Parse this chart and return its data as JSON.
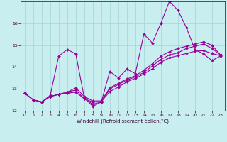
{
  "title": "",
  "xlabel": "Windchill (Refroidissement éolien,°C)",
  "bg_color": "#c8eef0",
  "grid_color": "#aad8da",
  "line_color": "#990099",
  "xlim": [
    -0.5,
    23.5
  ],
  "ylim": [
    12,
    17
  ],
  "yticks": [
    12,
    13,
    14,
    15,
    16
  ],
  "xticks": [
    0,
    1,
    2,
    3,
    4,
    5,
    6,
    7,
    8,
    9,
    10,
    11,
    12,
    13,
    14,
    15,
    16,
    17,
    18,
    19,
    20,
    21,
    22,
    23
  ],
  "series": [
    {
      "x": [
        0,
        1,
        2,
        3,
        4,
        5,
        6,
        7,
        8,
        9,
        10,
        11,
        12,
        13,
        14,
        15,
        16,
        17,
        18,
        19,
        20,
        21,
        22,
        23
      ],
      "y": [
        12.8,
        12.5,
        12.4,
        12.7,
        14.5,
        14.8,
        14.6,
        12.6,
        12.2,
        12.4,
        13.8,
        13.5,
        13.9,
        13.7,
        15.5,
        15.1,
        16.0,
        17.0,
        16.6,
        15.8,
        14.8,
        14.6,
        14.3,
        14.5
      ]
    },
    {
      "x": [
        0,
        1,
        2,
        3,
        4,
        5,
        6,
        7,
        8,
        9,
        10,
        11,
        12,
        13,
        14,
        15,
        16,
        17,
        18,
        19,
        20,
        21,
        22,
        23
      ],
      "y": [
        12.8,
        12.5,
        12.4,
        12.65,
        12.75,
        12.85,
        12.95,
        12.55,
        12.3,
        12.4,
        13.0,
        13.2,
        13.4,
        13.55,
        13.75,
        14.05,
        14.35,
        14.55,
        14.65,
        14.85,
        14.95,
        15.05,
        14.85,
        14.55
      ]
    },
    {
      "x": [
        0,
        1,
        2,
        3,
        4,
        5,
        6,
        7,
        8,
        9,
        10,
        11,
        12,
        13,
        14,
        15,
        16,
        17,
        18,
        19,
        20,
        21,
        22,
        23
      ],
      "y": [
        12.8,
        12.5,
        12.4,
        12.65,
        12.75,
        12.85,
        13.05,
        12.65,
        12.45,
        12.45,
        13.05,
        13.25,
        13.45,
        13.6,
        13.85,
        14.15,
        14.5,
        14.7,
        14.85,
        14.95,
        15.05,
        15.15,
        15.0,
        14.55
      ]
    },
    {
      "x": [
        0,
        1,
        2,
        3,
        4,
        5,
        6,
        7,
        8,
        9,
        10,
        11,
        12,
        13,
        14,
        15,
        16,
        17,
        18,
        19,
        20,
        21,
        22,
        23
      ],
      "y": [
        12.8,
        12.5,
        12.4,
        12.65,
        12.75,
        12.8,
        12.85,
        12.55,
        12.4,
        12.42,
        12.88,
        13.08,
        13.32,
        13.48,
        13.68,
        13.92,
        14.22,
        14.42,
        14.52,
        14.62,
        14.72,
        14.75,
        14.62,
        14.52
      ]
    }
  ]
}
